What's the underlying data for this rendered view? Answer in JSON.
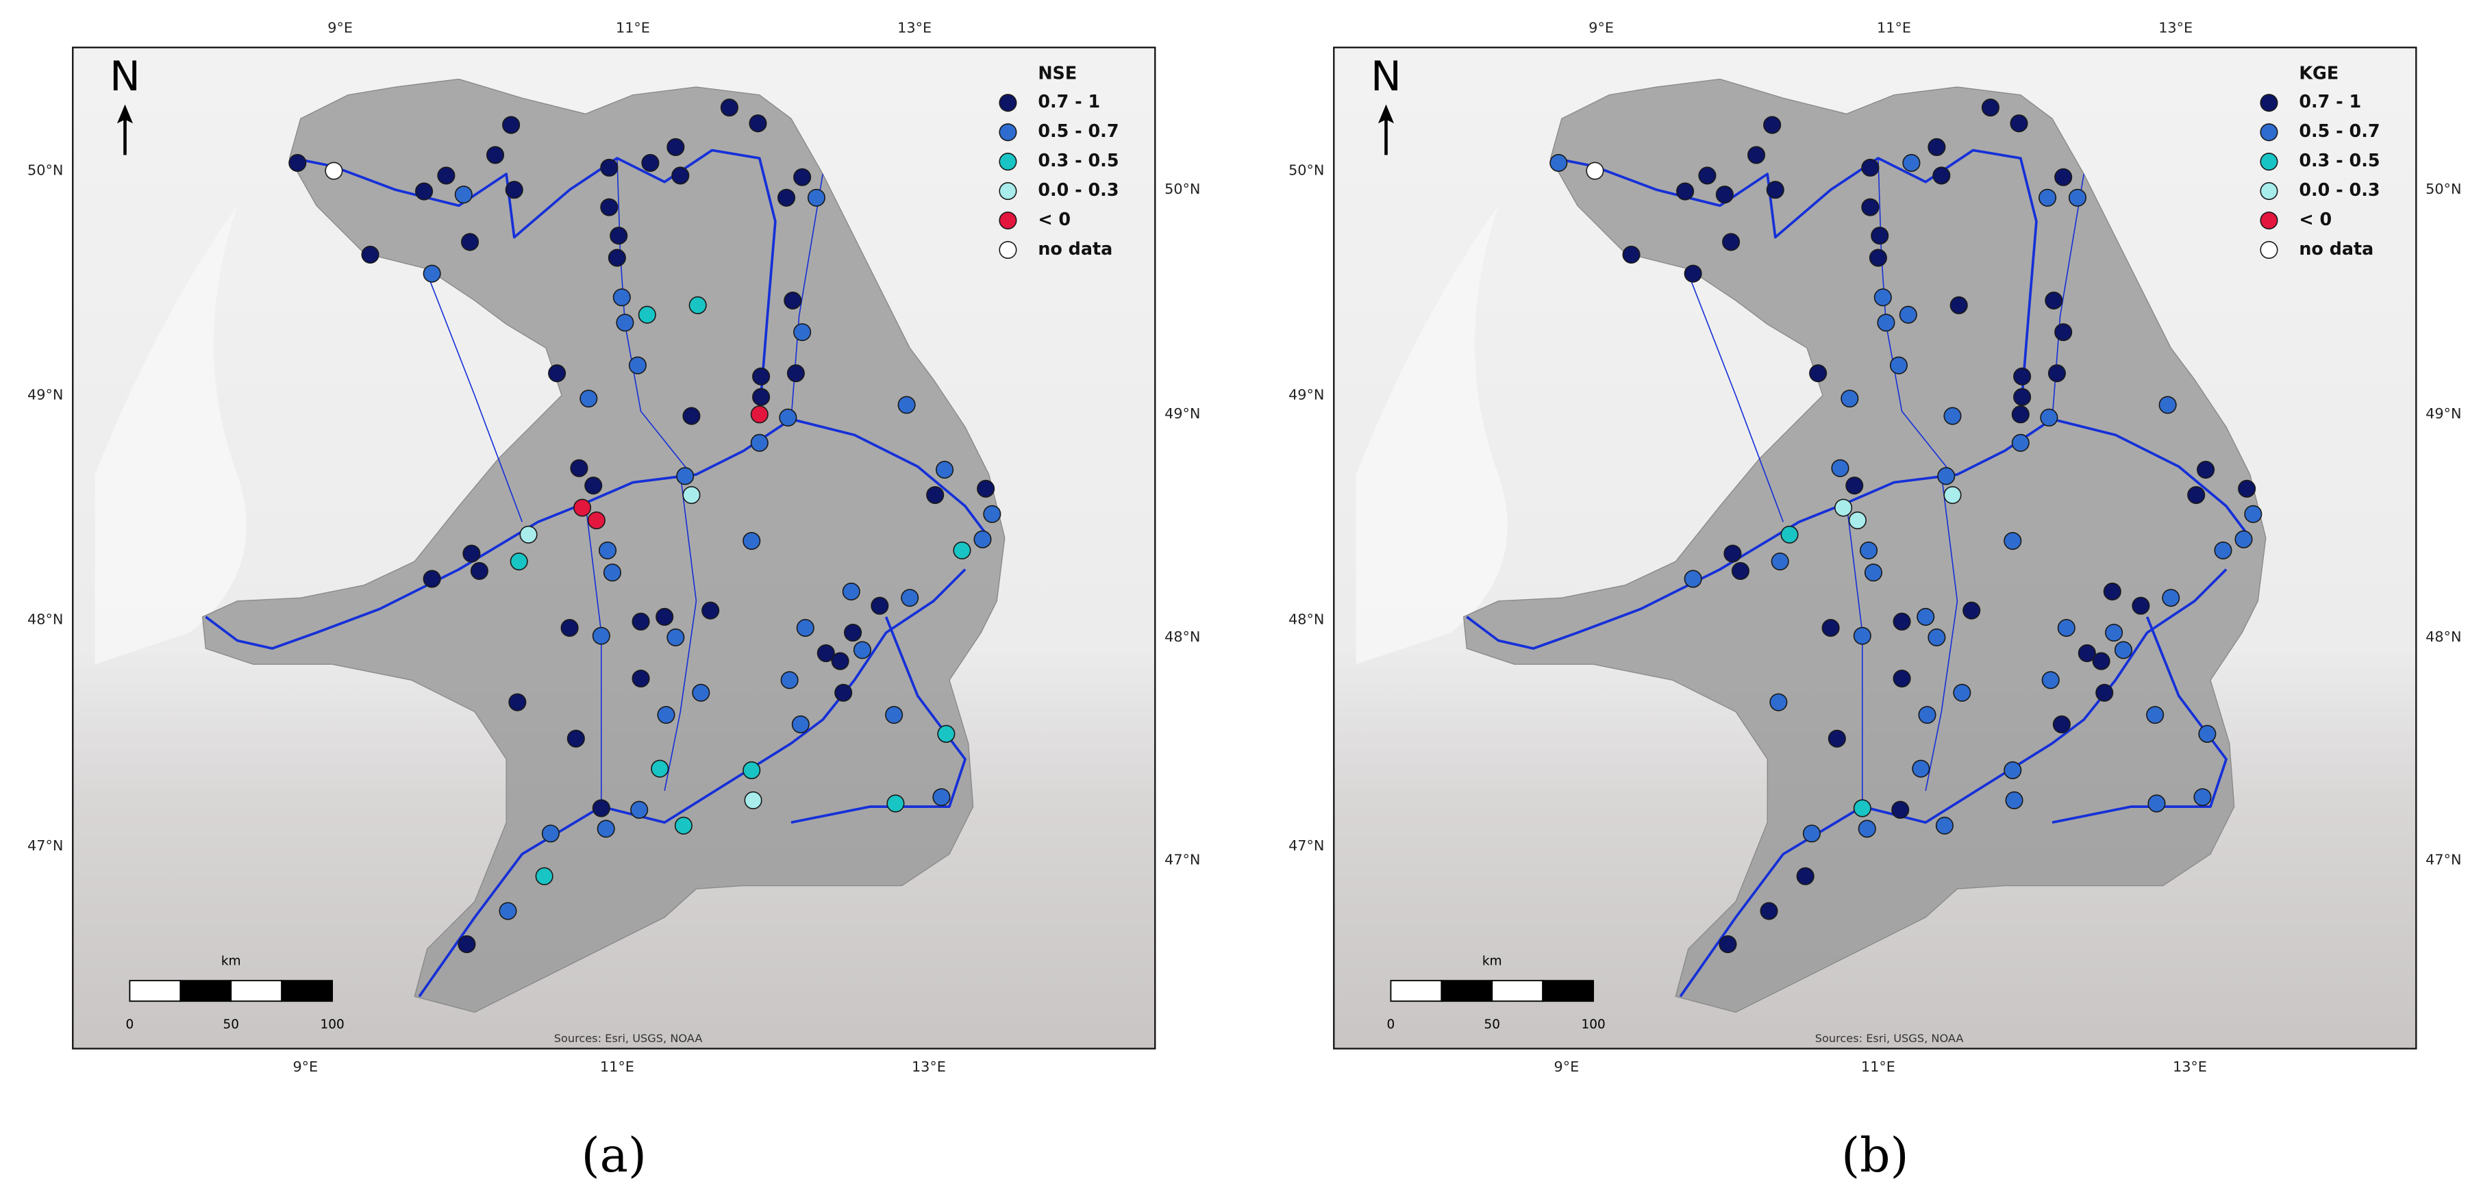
{
  "panels": [
    {
      "label": "(a)",
      "legend": {
        "title": "NSE",
        "items": [
          {
            "label": "0.7 - 1",
            "color": "#0c1466"
          },
          {
            "label": "0.5 - 0.7",
            "color": "#2e6cd0"
          },
          {
            "label": "0.3 - 0.5",
            "color": "#19c4c4"
          },
          {
            "label": "0.0 - 0.3",
            "color": "#a8ecec"
          },
          {
            "label": "< 0",
            "color": "#e3163e"
          },
          {
            "label": "no data",
            "color": "#ffffff"
          }
        ]
      },
      "north": "N",
      "scale": {
        "unit": "km",
        "ticks": [
          "0",
          "50",
          "100"
        ]
      },
      "source": "Sources: Esri, USGS, NOAA",
      "top_lon": [
        "9°E",
        "11°E",
        "13°E"
      ],
      "bottom_lon": [
        "9°E",
        "11°E",
        "13°E"
      ],
      "left_lat": [
        "50°N",
        "49°N",
        "48°N",
        "47°N"
      ],
      "right_lat": [
        "50°N",
        "49°N",
        "48°N",
        "47°N"
      ]
    },
    {
      "label": "(b)",
      "legend": {
        "title": "KGE",
        "items": [
          {
            "label": "0.7 - 1",
            "color": "#0c1466"
          },
          {
            "label": "0.5 - 0.7",
            "color": "#2e6cd0"
          },
          {
            "label": "0.3 - 0.5",
            "color": "#19c4c4"
          },
          {
            "label": "0.0 - 0.3",
            "color": "#a8ecec"
          },
          {
            "label": "< 0",
            "color": "#e3163e"
          },
          {
            "label": "no data",
            "color": "#ffffff"
          }
        ]
      },
      "north": "N",
      "scale": {
        "unit": "km",
        "ticks": [
          "0",
          "50",
          "100"
        ]
      },
      "source": "Sources: Esri, USGS, NOAA",
      "top_lon": [
        "9°E",
        "11°E",
        "13°E"
      ],
      "bottom_lon": [
        "9°E",
        "11°E",
        "13°E"
      ],
      "left_lat": [
        "50°N",
        "49°N",
        "48°N",
        "47°N"
      ],
      "right_lat": [
        "50°N",
        "49°N",
        "48°N",
        "47°N"
      ]
    }
  ]
}
